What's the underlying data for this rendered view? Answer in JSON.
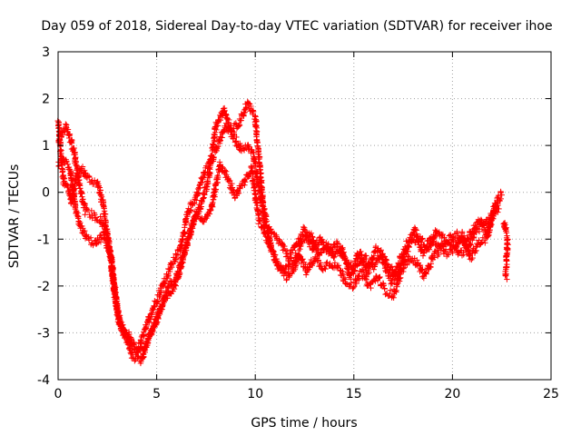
{
  "chart_data": {
    "type": "scatter",
    "title": "Day 059 of 2018, Sidereal Day-to-day VTEC variation (SDTVAR) for receiver ihoe",
    "xlabel": "GPS time / hours",
    "ylabel": "SDTVAR / TECUs",
    "xlim": [
      0,
      25
    ],
    "ylim": [
      -4,
      3
    ],
    "xticks": [
      0,
      5,
      10,
      15,
      20,
      25
    ],
    "yticks": [
      -4,
      -3,
      -2,
      -1,
      0,
      1,
      2,
      3
    ],
    "grid": true,
    "marker": "+",
    "color": "#ff0000",
    "series": [
      {
        "name": "SDTVAR",
        "description": "approximate traced bands of the scatter cloud (hours, TECU)",
        "bands": [
          [
            [
              0.0,
              1.5
            ],
            [
              0.1,
              1.1
            ],
            [
              0.2,
              0.5
            ],
            [
              0.3,
              0.2
            ],
            [
              0.5,
              0.1
            ],
            [
              0.7,
              -0.2
            ],
            [
              0.9,
              0.3
            ],
            [
              1.2,
              0.5
            ],
            [
              1.5,
              0.3
            ],
            [
              2.0,
              0.2
            ],
            [
              2.3,
              -0.3
            ],
            [
              2.6,
              -1.2
            ],
            [
              2.9,
              -2.3
            ],
            [
              3.2,
              -2.9
            ],
            [
              3.6,
              -3.2
            ],
            [
              4.0,
              -3.4
            ],
            [
              4.3,
              -3.1
            ],
            [
              4.7,
              -2.6
            ],
            [
              5.2,
              -2.1
            ],
            [
              5.7,
              -1.6
            ],
            [
              6.2,
              -1.2
            ],
            [
              6.6,
              -0.4
            ],
            [
              7.0,
              -0.1
            ],
            [
              7.4,
              0.4
            ],
            [
              7.8,
              0.7
            ],
            [
              8.2,
              1.1
            ],
            [
              8.5,
              1.4
            ],
            [
              8.9,
              1.2
            ],
            [
              9.3,
              0.9
            ],
            [
              9.6,
              1.0
            ],
            [
              9.9,
              0.8
            ],
            [
              10.2,
              0.1
            ],
            [
              10.5,
              -0.7
            ],
            [
              10.9,
              -0.9
            ],
            [
              11.3,
              -1.1
            ],
            [
              11.7,
              -1.4
            ],
            [
              12.1,
              -1.1
            ],
            [
              12.5,
              -0.8
            ],
            [
              12.9,
              -1.2
            ],
            [
              13.3,
              -1.0
            ],
            [
              13.7,
              -1.3
            ],
            [
              14.1,
              -1.1
            ],
            [
              14.5,
              -1.4
            ],
            [
              14.9,
              -1.6
            ],
            [
              15.3,
              -1.3
            ],
            [
              15.7,
              -1.7
            ],
            [
              16.1,
              -1.2
            ],
            [
              16.5,
              -1.5
            ],
            [
              16.9,
              -1.9
            ],
            [
              17.3,
              -1.5
            ],
            [
              17.7,
              -1.1
            ],
            [
              18.1,
              -0.8
            ],
            [
              18.5,
              -1.3
            ],
            [
              18.9,
              -1.0
            ],
            [
              19.3,
              -1.1
            ],
            [
              19.7,
              -1.3
            ],
            [
              20.1,
              -1.2
            ],
            [
              20.5,
              -0.9
            ],
            [
              20.9,
              -1.4
            ],
            [
              21.3,
              -1.1
            ],
            [
              21.7,
              -1.0
            ],
            [
              22.1,
              -0.4
            ],
            [
              22.5,
              0.0
            ]
          ],
          [
            [
              0.0,
              0.6
            ],
            [
              0.3,
              0.7
            ],
            [
              0.6,
              0.5
            ],
            [
              0.9,
              -0.4
            ],
            [
              1.2,
              -0.8
            ],
            [
              1.5,
              -1.0
            ],
            [
              1.9,
              -1.1
            ],
            [
              2.3,
              -0.9
            ],
            [
              2.7,
              -1.4
            ],
            [
              3.0,
              -2.6
            ],
            [
              3.4,
              -3.1
            ],
            [
              3.8,
              -3.5
            ],
            [
              4.2,
              -3.6
            ],
            [
              4.6,
              -3.1
            ],
            [
              5.0,
              -2.7
            ],
            [
              5.4,
              -2.3
            ],
            [
              5.8,
              -2.1
            ],
            [
              6.2,
              -1.6
            ],
            [
              6.6,
              -1.0
            ],
            [
              7.0,
              -0.4
            ],
            [
              7.4,
              -0.6
            ],
            [
              7.8,
              -0.3
            ],
            [
              8.2,
              0.6
            ],
            [
              8.6,
              0.3
            ],
            [
              9.0,
              -0.1
            ],
            [
              9.4,
              0.2
            ],
            [
              9.8,
              0.5
            ],
            [
              10.2,
              -0.6
            ],
            [
              10.6,
              -1.0
            ],
            [
              11.0,
              -1.4
            ],
            [
              11.4,
              -1.7
            ],
            [
              11.8,
              -1.5
            ],
            [
              12.2,
              -1.3
            ],
            [
              12.6,
              -1.7
            ],
            [
              13.0,
              -1.4
            ],
            [
              13.4,
              -1.6
            ],
            [
              13.8,
              -1.5
            ],
            [
              14.2,
              -1.6
            ],
            [
              14.6,
              -1.9
            ],
            [
              15.0,
              -2.0
            ],
            [
              15.4,
              -1.7
            ],
            [
              15.8,
              -2.0
            ],
            [
              16.2,
              -1.8
            ],
            [
              16.6,
              -2.1
            ],
            [
              17.0,
              -2.2
            ],
            [
              17.4,
              -1.7
            ],
            [
              17.8,
              -1.4
            ],
            [
              18.2,
              -1.5
            ],
            [
              18.6,
              -1.8
            ],
            [
              19.0,
              -1.4
            ],
            [
              19.4,
              -1.2
            ],
            [
              19.8,
              -1.0
            ],
            [
              20.2,
              -0.9
            ],
            [
              20.6,
              -1.1
            ],
            [
              21.0,
              -0.8
            ],
            [
              21.4,
              -0.6
            ],
            [
              21.8,
              -0.9
            ],
            [
              22.2,
              -0.2
            ]
          ],
          [
            [
              0.0,
              1.1
            ],
            [
              0.4,
              1.4
            ],
            [
              0.8,
              0.9
            ],
            [
              1.1,
              0.1
            ],
            [
              1.4,
              -0.4
            ],
            [
              1.8,
              -0.5
            ],
            [
              2.2,
              -0.6
            ],
            [
              2.5,
              -0.9
            ],
            [
              2.8,
              -1.8
            ],
            [
              3.1,
              -2.8
            ],
            [
              3.5,
              -3.0
            ],
            [
              3.9,
              -3.3
            ],
            [
              4.3,
              -3.4
            ],
            [
              4.8,
              -2.9
            ],
            [
              5.2,
              -2.5
            ],
            [
              5.6,
              -2.0
            ],
            [
              6.0,
              -1.8
            ],
            [
              6.4,
              -1.3
            ],
            [
              6.8,
              -0.7
            ],
            [
              7.2,
              -0.3
            ],
            [
              7.6,
              0.2
            ],
            [
              8.0,
              1.4
            ],
            [
              8.4,
              1.8
            ],
            [
              8.8,
              1.3
            ],
            [
              9.2,
              1.5
            ],
            [
              9.6,
              1.9
            ],
            [
              10.0,
              1.6
            ],
            [
              10.4,
              -0.3
            ],
            [
              10.8,
              -1.2
            ],
            [
              11.2,
              -1.6
            ],
            [
              11.6,
              -1.8
            ],
            [
              12.0,
              -1.6
            ],
            [
              12.4,
              -1.0
            ],
            [
              12.8,
              -0.9
            ],
            [
              13.2,
              -1.3
            ],
            [
              13.6,
              -1.1
            ],
            [
              14.0,
              -1.4
            ],
            [
              14.4,
              -1.2
            ],
            [
              14.8,
              -1.8
            ],
            [
              15.2,
              -1.5
            ],
            [
              15.6,
              -1.4
            ],
            [
              16.0,
              -1.6
            ],
            [
              16.4,
              -1.3
            ],
            [
              16.8,
              -1.6
            ],
            [
              17.2,
              -1.8
            ],
            [
              17.6,
              -1.3
            ],
            [
              18.0,
              -1.0
            ],
            [
              18.4,
              -1.0
            ],
            [
              18.8,
              -1.2
            ],
            [
              19.2,
              -0.8
            ],
            [
              19.6,
              -1.0
            ],
            [
              20.0,
              -1.1
            ],
            [
              20.4,
              -1.3
            ],
            [
              20.8,
              -1.2
            ],
            [
              21.2,
              -0.8
            ],
            [
              21.6,
              -0.7
            ],
            [
              22.0,
              -0.5
            ],
            [
              22.4,
              -0.3
            ]
          ],
          [
            [
              22.6,
              -0.6
            ],
            [
              22.7,
              -0.8
            ],
            [
              22.8,
              -1.0
            ],
            [
              22.7,
              -1.8
            ],
            [
              22.8,
              -1.8
            ]
          ]
        ]
      }
    ]
  }
}
